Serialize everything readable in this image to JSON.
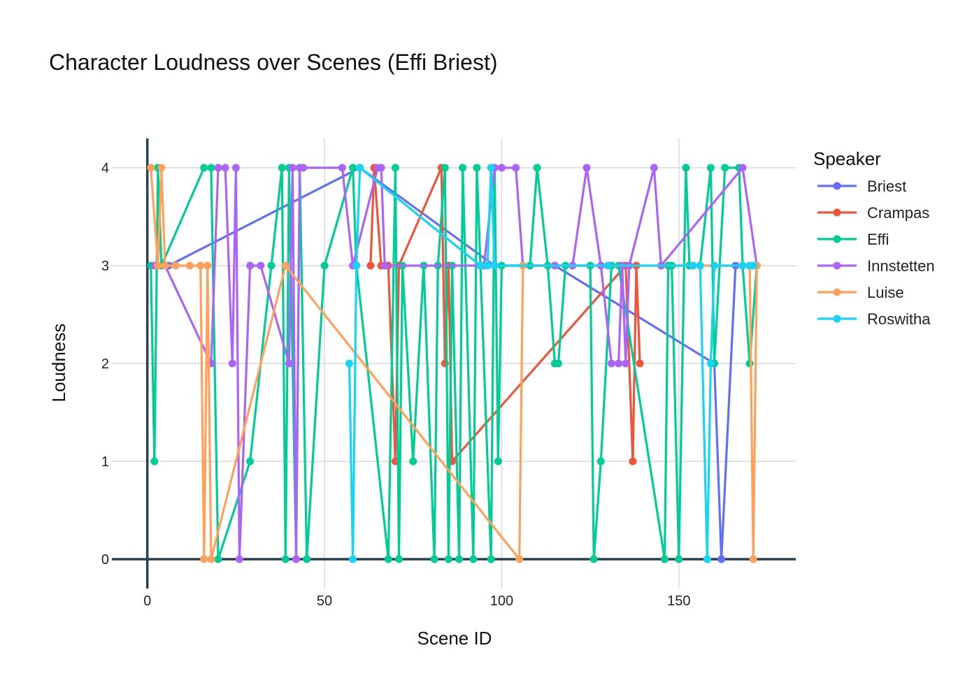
{
  "chart_data": {
    "type": "line",
    "title": "Character Loudness over Scenes (Effi Briest)",
    "xlabel": "Scene ID",
    "ylabel": "Loudness",
    "xlim": [
      -10,
      183
    ],
    "ylim": [
      -0.3,
      4.3
    ],
    "xticks": [
      0,
      50,
      100,
      150
    ],
    "yticks": [
      0,
      1,
      2,
      3,
      4
    ],
    "grid": true,
    "legend_title": "Speaker",
    "legend_position": "right",
    "series": [
      {
        "name": "Briest",
        "color": "#636efa",
        "x": [
          3,
          4,
          6,
          60,
          98,
          115,
          160,
          162,
          166
        ],
        "y": [
          3,
          3,
          3,
          4,
          3,
          3,
          2,
          0,
          3
        ]
      },
      {
        "name": "Crampas",
        "color": "#ef553b",
        "x": [
          63,
          64,
          66,
          68,
          70,
          71,
          83,
          84,
          85,
          86,
          135,
          137,
          138,
          139
        ],
        "y": [
          3,
          4,
          3,
          3,
          1,
          3,
          4,
          2,
          3,
          1,
          3,
          1,
          3,
          2
        ],
        "dup_ratio": 0
      },
      {
        "name": "Effi",
        "color": "#00cc96",
        "x": [
          1,
          2,
          3,
          4,
          16,
          18,
          20,
          29,
          35,
          38,
          39,
          40,
          42,
          43,
          45,
          50,
          58,
          59,
          68,
          70,
          71,
          72,
          75,
          78,
          81,
          82,
          84,
          85,
          86,
          88,
          89,
          92,
          93,
          94,
          97,
          98,
          99,
          100,
          106,
          108,
          110,
          113,
          115,
          116,
          118,
          125,
          126,
          128,
          131,
          133,
          146,
          147,
          148,
          150,
          152,
          153,
          156,
          159,
          160,
          163,
          167,
          168,
          170,
          172
        ],
        "y": [
          3,
          1,
          4,
          3,
          4,
          4,
          0,
          1,
          3,
          4,
          0,
          4,
          0,
          4,
          0,
          3,
          4,
          3,
          0,
          4,
          0,
          3,
          1,
          3,
          0,
          3,
          4,
          0,
          3,
          0,
          4,
          0,
          4,
          3,
          0,
          4,
          1,
          3,
          3,
          3,
          4,
          3,
          2,
          2,
          3,
          3,
          0,
          1,
          3,
          3,
          0,
          3,
          3,
          0,
          4,
          3,
          3,
          4,
          2,
          4,
          4,
          3,
          2,
          3
        ]
      },
      {
        "name": "Innstetten",
        "color": "#ab63fa",
        "x": [
          2,
          5,
          18,
          20,
          22,
          24,
          25,
          26,
          29,
          32,
          40,
          41,
          42,
          43,
          44,
          55,
          58,
          65,
          66,
          67,
          95,
          98,
          100,
          104,
          106,
          115,
          120,
          124,
          128,
          131,
          133,
          134,
          135,
          136,
          143,
          145,
          168,
          172
        ],
        "y": [
          3,
          3,
          2,
          4,
          4,
          2,
          4,
          0,
          3,
          3,
          2,
          4,
          0,
          4,
          4,
          4,
          3,
          4,
          4,
          3,
          3,
          4,
          4,
          4,
          3,
          3,
          3,
          4,
          3,
          2,
          2,
          3,
          2,
          3,
          4,
          3,
          4,
          3
        ]
      },
      {
        "name": "Luise",
        "color": "#ffa15a",
        "x": [
          1,
          3,
          4,
          5,
          8,
          12,
          15,
          16,
          17,
          18,
          39,
          105,
          106,
          170,
          171,
          172
        ],
        "y": [
          4,
          3,
          4,
          3,
          3,
          3,
          3,
          0,
          3,
          0,
          3,
          0,
          3,
          3,
          0,
          3
        ]
      },
      {
        "name": "Roswitha",
        "color": "#19d3f3",
        "x": [
          57,
          58,
          59,
          60,
          94,
          96,
          97,
          98,
          130,
          154,
          156,
          158,
          159,
          160,
          168,
          170,
          171
        ],
        "y": [
          2,
          0,
          3,
          4,
          3,
          3,
          4,
          3,
          3,
          3,
          3,
          0,
          2,
          3,
          3,
          3,
          3
        ]
      }
    ]
  }
}
